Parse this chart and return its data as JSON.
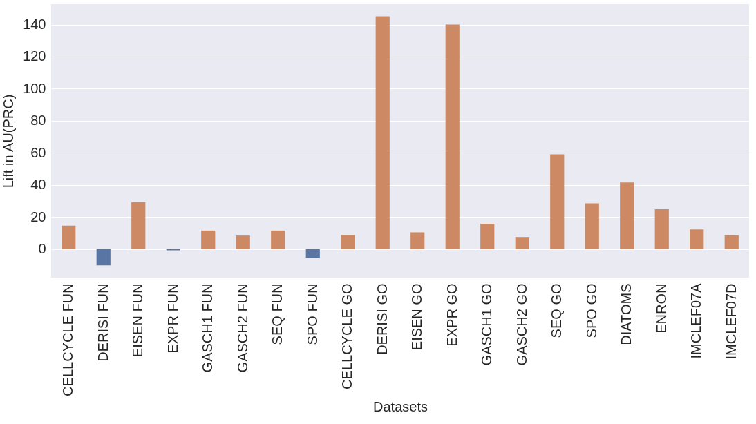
{
  "chart_data": {
    "type": "bar",
    "xlabel": "Datasets",
    "ylabel": "Lift in AU(PRC)",
    "categories": [
      "CELLCYCLE FUN",
      "DERISI FUN",
      "EISEN FUN",
      "EXPR FUN",
      "GASCH1 FUN",
      "GASCH2 FUN",
      "SEQ FUN",
      "SPO FUN",
      "CELLCYCLE GO",
      "DERISI GO",
      "EISEN GO",
      "EXPR GO",
      "GASCH1 GO",
      "GASCH2 GO",
      "SEQ GO",
      "SPO GO",
      "DIATOMS",
      "ENRON",
      "IMCLEF07A",
      "IMCLEF07D"
    ],
    "values": [
      14.7,
      -10.1,
      29.3,
      -0.7,
      11.6,
      8.5,
      11.6,
      -5.4,
      8.8,
      145.2,
      10.5,
      140,
      15.8,
      7.6,
      59.1,
      28.6,
      41.6,
      24.9,
      12.3,
      8.7
    ],
    "colors": [
      "#cc8963",
      "#5975a4",
      "#cc8963",
      "#5975a4",
      "#cc8963",
      "#cc8963",
      "#cc8963",
      "#5975a4",
      "#cc8963",
      "#cc8963",
      "#cc8963",
      "#cc8963",
      "#cc8963",
      "#cc8963",
      "#cc8963",
      "#cc8963",
      "#cc8963",
      "#cc8963",
      "#cc8963",
      "#cc8963"
    ],
    "ylim": [
      -17.7,
      152.7
    ],
    "yticks": [
      0,
      20,
      40,
      60,
      80,
      100,
      120,
      140
    ],
    "grid": "y"
  }
}
